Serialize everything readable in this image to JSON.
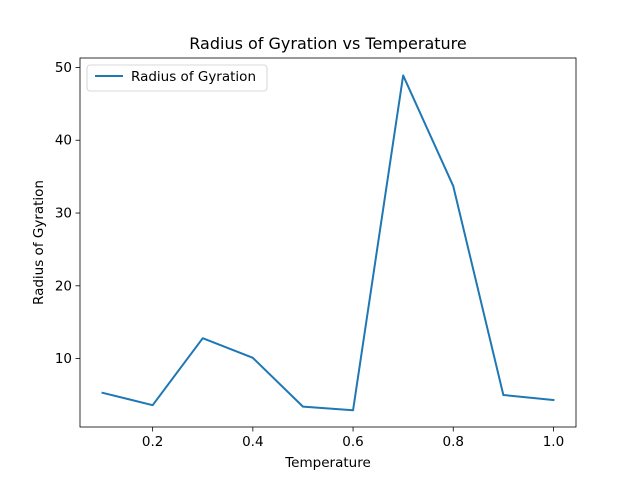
{
  "chart_data": {
    "type": "line",
    "title": "Radius of Gyration vs Temperature",
    "xlabel": "Temperature",
    "ylabel": "Radius of Gyration",
    "xlim": [
      0.055,
      1.045
    ],
    "ylim": [
      0.6,
      51.3
    ],
    "xticks": [
      0.2,
      0.4,
      0.6,
      0.8,
      1.0
    ],
    "xtick_labels": [
      "0.2",
      "0.4",
      "0.6",
      "0.8",
      "1.0"
    ],
    "yticks": [
      10,
      20,
      30,
      40,
      50
    ],
    "ytick_labels": [
      "10",
      "20",
      "30",
      "40",
      "50"
    ],
    "grid": false,
    "legend_position": "upper-left",
    "series": [
      {
        "name": "Radius of Gyration",
        "color": "#1f77b4",
        "x": [
          0.1,
          0.2,
          0.3,
          0.4,
          0.5,
          0.6,
          0.7,
          0.8,
          0.9,
          1.0
        ],
        "y": [
          5.3,
          3.6,
          12.8,
          10.1,
          3.4,
          2.9,
          48.9,
          33.7,
          5.0,
          4.3
        ]
      }
    ]
  }
}
